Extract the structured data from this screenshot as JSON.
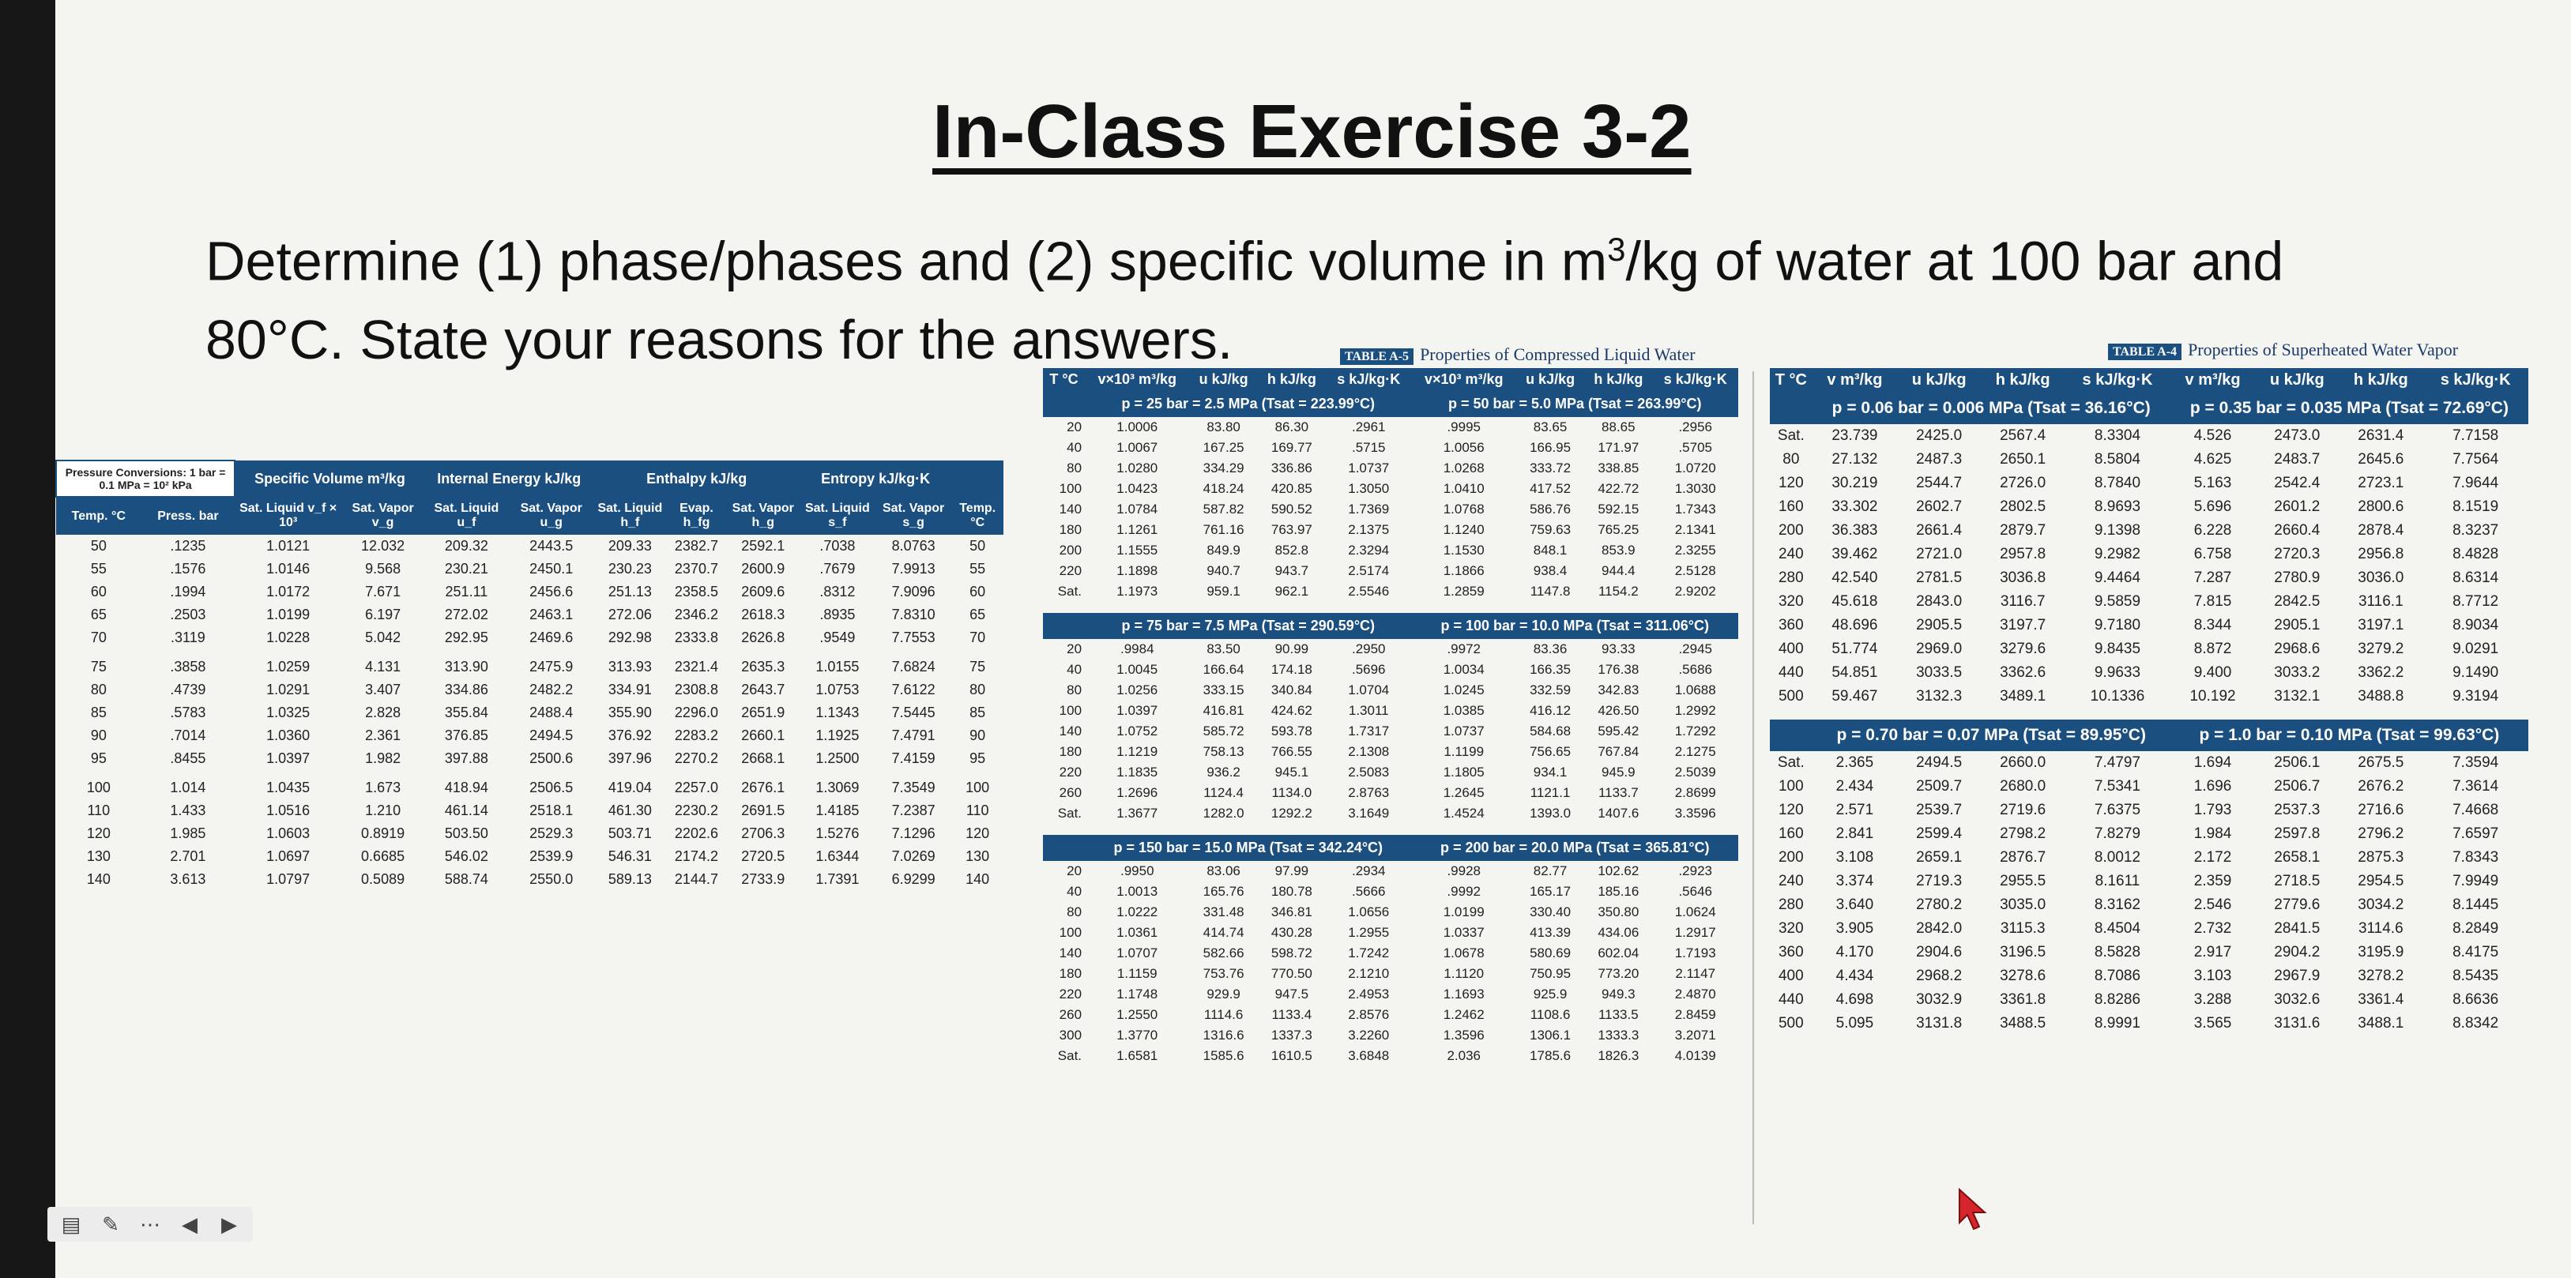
{
  "slide": {
    "title": "In-Class Exercise 3-2",
    "question_line1_a": "Determine (1) phase/phases and (2) specific volume in m",
    "question_sup": "3",
    "question_line1_b": "/kg of water at 100 bar and",
    "question_line2": "80°C. State your reasons for the answers."
  },
  "sat_table": {
    "header_conv": "Pressure Conversions: 1 bar = 0.1 MPa = 10² kPa",
    "groups": [
      "Specific Volume m³/kg",
      "Internal Energy kJ/kg",
      "Enthalpy kJ/kg",
      "Entropy kJ/kg·K"
    ],
    "cols": [
      "Temp. °C",
      "Press. bar",
      "Sat. Liquid v_f × 10³",
      "Sat. Vapor v_g",
      "Sat. Liquid u_f",
      "Sat. Vapor u_g",
      "Sat. Liquid h_f",
      "Evap. h_fg",
      "Sat. Vapor h_g",
      "Sat. Liquid s_f",
      "Sat. Vapor s_g",
      "Temp. °C"
    ],
    "rows": [
      [
        "50",
        ".1235",
        "1.0121",
        "12.032",
        "209.32",
        "2443.5",
        "209.33",
        "2382.7",
        "2592.1",
        ".7038",
        "8.0763",
        "50"
      ],
      [
        "55",
        ".1576",
        "1.0146",
        "9.568",
        "230.21",
        "2450.1",
        "230.23",
        "2370.7",
        "2600.9",
        ".7679",
        "7.9913",
        "55"
      ],
      [
        "60",
        ".1994",
        "1.0172",
        "7.671",
        "251.11",
        "2456.6",
        "251.13",
        "2358.5",
        "2609.6",
        ".8312",
        "7.9096",
        "60"
      ],
      [
        "65",
        ".2503",
        "1.0199",
        "6.197",
        "272.02",
        "2463.1",
        "272.06",
        "2346.2",
        "2618.3",
        ".8935",
        "7.8310",
        "65"
      ],
      [
        "70",
        ".3119",
        "1.0228",
        "5.042",
        "292.95",
        "2469.6",
        "292.98",
        "2333.8",
        "2626.8",
        ".9549",
        "7.7553",
        "70"
      ],
      [
        "75",
        ".3858",
        "1.0259",
        "4.131",
        "313.90",
        "2475.9",
        "313.93",
        "2321.4",
        "2635.3",
        "1.0155",
        "7.6824",
        "75"
      ],
      [
        "80",
        ".4739",
        "1.0291",
        "3.407",
        "334.86",
        "2482.2",
        "334.91",
        "2308.8",
        "2643.7",
        "1.0753",
        "7.6122",
        "80"
      ],
      [
        "85",
        ".5783",
        "1.0325",
        "2.828",
        "355.84",
        "2488.4",
        "355.90",
        "2296.0",
        "2651.9",
        "1.1343",
        "7.5445",
        "85"
      ],
      [
        "90",
        ".7014",
        "1.0360",
        "2.361",
        "376.85",
        "2494.5",
        "376.92",
        "2283.2",
        "2660.1",
        "1.1925",
        "7.4791",
        "90"
      ],
      [
        "95",
        ".8455",
        "1.0397",
        "1.982",
        "397.88",
        "2500.6",
        "397.96",
        "2270.2",
        "2668.1",
        "1.2500",
        "7.4159",
        "95"
      ],
      [
        "100",
        "1.014",
        "1.0435",
        "1.673",
        "418.94",
        "2506.5",
        "419.04",
        "2257.0",
        "2676.1",
        "1.3069",
        "7.3549",
        "100"
      ],
      [
        "110",
        "1.433",
        "1.0516",
        "1.210",
        "461.14",
        "2518.1",
        "461.30",
        "2230.2",
        "2691.5",
        "1.4185",
        "7.2387",
        "110"
      ],
      [
        "120",
        "1.985",
        "1.0603",
        "0.8919",
        "503.50",
        "2529.3",
        "503.71",
        "2202.6",
        "2706.3",
        "1.5276",
        "7.1296",
        "120"
      ],
      [
        "130",
        "2.701",
        "1.0697",
        "0.6685",
        "546.02",
        "2539.9",
        "546.31",
        "2174.2",
        "2720.5",
        "1.6344",
        "7.0269",
        "130"
      ],
      [
        "140",
        "3.613",
        "1.0797",
        "0.5089",
        "588.74",
        "2550.0",
        "589.13",
        "2144.7",
        "2733.9",
        "1.7391",
        "6.9299",
        "140"
      ]
    ]
  },
  "comp_table": {
    "tag": "TABLE A-5",
    "caption": "Properties of Compressed Liquid Water",
    "cols": [
      "T °C",
      "v×10³ m³/kg",
      "u kJ/kg",
      "h kJ/kg",
      "s kJ/kg·K",
      "v×10³ m³/kg",
      "u kJ/kg",
      "h kJ/kg",
      "s kJ/kg·K"
    ],
    "blocks": [
      {
        "left": "p = 25 bar = 2.5 MPa (Tsat = 223.99°C)",
        "right": "p = 50 bar = 5.0 MPa (Tsat = 263.99°C)",
        "rows": [
          [
            "20",
            "1.0006",
            "83.80",
            "86.30",
            ".2961",
            ".9995",
            "83.65",
            "88.65",
            ".2956"
          ],
          [
            "40",
            "1.0067",
            "167.25",
            "169.77",
            ".5715",
            "1.0056",
            "166.95",
            "171.97",
            ".5705"
          ],
          [
            "80",
            "1.0280",
            "334.29",
            "336.86",
            "1.0737",
            "1.0268",
            "333.72",
            "338.85",
            "1.0720"
          ],
          [
            "100",
            "1.0423",
            "418.24",
            "420.85",
            "1.3050",
            "1.0410",
            "417.52",
            "422.72",
            "1.3030"
          ],
          [
            "140",
            "1.0784",
            "587.82",
            "590.52",
            "1.7369",
            "1.0768",
            "586.76",
            "592.15",
            "1.7343"
          ],
          [
            "180",
            "1.1261",
            "761.16",
            "763.97",
            "2.1375",
            "1.1240",
            "759.63",
            "765.25",
            "2.1341"
          ],
          [
            "200",
            "1.1555",
            "849.9",
            "852.8",
            "2.3294",
            "1.1530",
            "848.1",
            "853.9",
            "2.3255"
          ],
          [
            "220",
            "1.1898",
            "940.7",
            "943.7",
            "2.5174",
            "1.1866",
            "938.4",
            "944.4",
            "2.5128"
          ],
          [
            "Sat.",
            "1.1973",
            "959.1",
            "962.1",
            "2.5546",
            "1.2859",
            "1147.8",
            "1154.2",
            "2.9202"
          ]
        ]
      },
      {
        "left": "p = 75 bar = 7.5 MPa (Tsat = 290.59°C)",
        "right": "p = 100 bar = 10.0 MPa (Tsat = 311.06°C)",
        "rows": [
          [
            "20",
            ".9984",
            "83.50",
            "90.99",
            ".2950",
            ".9972",
            "83.36",
            "93.33",
            ".2945"
          ],
          [
            "40",
            "1.0045",
            "166.64",
            "174.18",
            ".5696",
            "1.0034",
            "166.35",
            "176.38",
            ".5686"
          ],
          [
            "80",
            "1.0256",
            "333.15",
            "340.84",
            "1.0704",
            "1.0245",
            "332.59",
            "342.83",
            "1.0688"
          ],
          [
            "100",
            "1.0397",
            "416.81",
            "424.62",
            "1.3011",
            "1.0385",
            "416.12",
            "426.50",
            "1.2992"
          ],
          [
            "140",
            "1.0752",
            "585.72",
            "593.78",
            "1.7317",
            "1.0737",
            "584.68",
            "595.42",
            "1.7292"
          ],
          [
            "180",
            "1.1219",
            "758.13",
            "766.55",
            "2.1308",
            "1.1199",
            "756.65",
            "767.84",
            "2.1275"
          ],
          [
            "220",
            "1.1835",
            "936.2",
            "945.1",
            "2.5083",
            "1.1805",
            "934.1",
            "945.9",
            "2.5039"
          ],
          [
            "260",
            "1.2696",
            "1124.4",
            "1134.0",
            "2.8763",
            "1.2645",
            "1121.1",
            "1133.7",
            "2.8699"
          ],
          [
            "Sat.",
            "1.3677",
            "1282.0",
            "1292.2",
            "3.1649",
            "1.4524",
            "1393.0",
            "1407.6",
            "3.3596"
          ]
        ]
      },
      {
        "left": "p = 150 bar = 15.0 MPa (Tsat = 342.24°C)",
        "right": "p = 200 bar = 20.0 MPa (Tsat = 365.81°C)",
        "rows": [
          [
            "20",
            ".9950",
            "83.06",
            "97.99",
            ".2934",
            ".9928",
            "82.77",
            "102.62",
            ".2923"
          ],
          [
            "40",
            "1.0013",
            "165.76",
            "180.78",
            ".5666",
            ".9992",
            "165.17",
            "185.16",
            ".5646"
          ],
          [
            "80",
            "1.0222",
            "331.48",
            "346.81",
            "1.0656",
            "1.0199",
            "330.40",
            "350.80",
            "1.0624"
          ],
          [
            "100",
            "1.0361",
            "414.74",
            "430.28",
            "1.2955",
            "1.0337",
            "413.39",
            "434.06",
            "1.2917"
          ],
          [
            "140",
            "1.0707",
            "582.66",
            "598.72",
            "1.7242",
            "1.0678",
            "580.69",
            "602.04",
            "1.7193"
          ],
          [
            "180",
            "1.1159",
            "753.76",
            "770.50",
            "2.1210",
            "1.1120",
            "750.95",
            "773.20",
            "2.1147"
          ],
          [
            "220",
            "1.1748",
            "929.9",
            "947.5",
            "2.4953",
            "1.1693",
            "925.9",
            "949.3",
            "2.4870"
          ],
          [
            "260",
            "1.2550",
            "1114.6",
            "1133.4",
            "2.8576",
            "1.2462",
            "1108.6",
            "1133.5",
            "2.8459"
          ],
          [
            "300",
            "1.3770",
            "1316.6",
            "1337.3",
            "3.2260",
            "1.3596",
            "1306.1",
            "1333.3",
            "3.2071"
          ],
          [
            "Sat.",
            "1.6581",
            "1585.6",
            "1610.5",
            "3.6848",
            "2.036",
            "1785.6",
            "1826.3",
            "4.0139"
          ]
        ]
      }
    ]
  },
  "sup_table": {
    "tag": "TABLE A-4",
    "caption": "Properties of Superheated Water Vapor",
    "cols": [
      "T °C",
      "v m³/kg",
      "u kJ/kg",
      "h kJ/kg",
      "s kJ/kg·K",
      "v m³/kg",
      "u kJ/kg",
      "h kJ/kg",
      "s kJ/kg·K"
    ],
    "blocks": [
      {
        "left": "p = 0.06 bar = 0.006 MPa (Tsat = 36.16°C)",
        "right": "p = 0.35 bar = 0.035 MPa (Tsat = 72.69°C)",
        "rows": [
          [
            "Sat.",
            "23.739",
            "2425.0",
            "2567.4",
            "8.3304",
            "4.526",
            "2473.0",
            "2631.4",
            "7.7158"
          ],
          [
            "80",
            "27.132",
            "2487.3",
            "2650.1",
            "8.5804",
            "4.625",
            "2483.7",
            "2645.6",
            "7.7564"
          ],
          [
            "120",
            "30.219",
            "2544.7",
            "2726.0",
            "8.7840",
            "5.163",
            "2542.4",
            "2723.1",
            "7.9644"
          ],
          [
            "160",
            "33.302",
            "2602.7",
            "2802.5",
            "8.9693",
            "5.696",
            "2601.2",
            "2800.6",
            "8.1519"
          ],
          [
            "200",
            "36.383",
            "2661.4",
            "2879.7",
            "9.1398",
            "6.228",
            "2660.4",
            "2878.4",
            "8.3237"
          ],
          [
            "240",
            "39.462",
            "2721.0",
            "2957.8",
            "9.2982",
            "6.758",
            "2720.3",
            "2956.8",
            "8.4828"
          ],
          [
            "280",
            "42.540",
            "2781.5",
            "3036.8",
            "9.4464",
            "7.287",
            "2780.9",
            "3036.0",
            "8.6314"
          ],
          [
            "320",
            "45.618",
            "2843.0",
            "3116.7",
            "9.5859",
            "7.815",
            "2842.5",
            "3116.1",
            "8.7712"
          ],
          [
            "360",
            "48.696",
            "2905.5",
            "3197.7",
            "9.7180",
            "8.344",
            "2905.1",
            "3197.1",
            "8.9034"
          ],
          [
            "400",
            "51.774",
            "2969.0",
            "3279.6",
            "9.8435",
            "8.872",
            "2968.6",
            "3279.2",
            "9.0291"
          ],
          [
            "440",
            "54.851",
            "3033.5",
            "3362.6",
            "9.9633",
            "9.400",
            "3033.2",
            "3362.2",
            "9.1490"
          ],
          [
            "500",
            "59.467",
            "3132.3",
            "3489.1",
            "10.1336",
            "10.192",
            "3132.1",
            "3488.8",
            "9.3194"
          ]
        ]
      },
      {
        "left": "p = 0.70 bar = 0.07 MPa (Tsat = 89.95°C)",
        "right": "p = 1.0 bar = 0.10 MPa (Tsat = 99.63°C)",
        "rows": [
          [
            "Sat.",
            "2.365",
            "2494.5",
            "2660.0",
            "7.4797",
            "1.694",
            "2506.1",
            "2675.5",
            "7.3594"
          ],
          [
            "100",
            "2.434",
            "2509.7",
            "2680.0",
            "7.5341",
            "1.696",
            "2506.7",
            "2676.2",
            "7.3614"
          ],
          [
            "120",
            "2.571",
            "2539.7",
            "2719.6",
            "7.6375",
            "1.793",
            "2537.3",
            "2716.6",
            "7.4668"
          ],
          [
            "160",
            "2.841",
            "2599.4",
            "2798.2",
            "7.8279",
            "1.984",
            "2597.8",
            "2796.2",
            "7.6597"
          ],
          [
            "200",
            "3.108",
            "2659.1",
            "2876.7",
            "8.0012",
            "2.172",
            "2658.1",
            "2875.3",
            "7.8343"
          ],
          [
            "240",
            "3.374",
            "2719.3",
            "2955.5",
            "8.1611",
            "2.359",
            "2718.5",
            "2954.5",
            "7.9949"
          ],
          [
            "280",
            "3.640",
            "2780.2",
            "3035.0",
            "8.3162",
            "2.546",
            "2779.6",
            "3034.2",
            "8.1445"
          ],
          [
            "320",
            "3.905",
            "2842.0",
            "3115.3",
            "8.4504",
            "2.732",
            "2841.5",
            "3114.6",
            "8.2849"
          ],
          [
            "360",
            "4.170",
            "2904.6",
            "3196.5",
            "8.5828",
            "2.917",
            "2904.2",
            "3195.9",
            "8.4175"
          ],
          [
            "400",
            "4.434",
            "2968.2",
            "3278.6",
            "8.7086",
            "3.103",
            "2967.9",
            "3278.2",
            "8.5435"
          ],
          [
            "440",
            "4.698",
            "3032.9",
            "3361.8",
            "8.8286",
            "3.288",
            "3032.6",
            "3361.4",
            "8.6636"
          ],
          [
            "500",
            "5.095",
            "3131.8",
            "3488.5",
            "8.9991",
            "3.565",
            "3131.6",
            "3488.1",
            "8.8342"
          ]
        ]
      }
    ]
  },
  "toolbar": {
    "items": [
      "pointer-icon",
      "pen-icon",
      "menu-icon",
      "prev-icon",
      "next-icon"
    ]
  }
}
